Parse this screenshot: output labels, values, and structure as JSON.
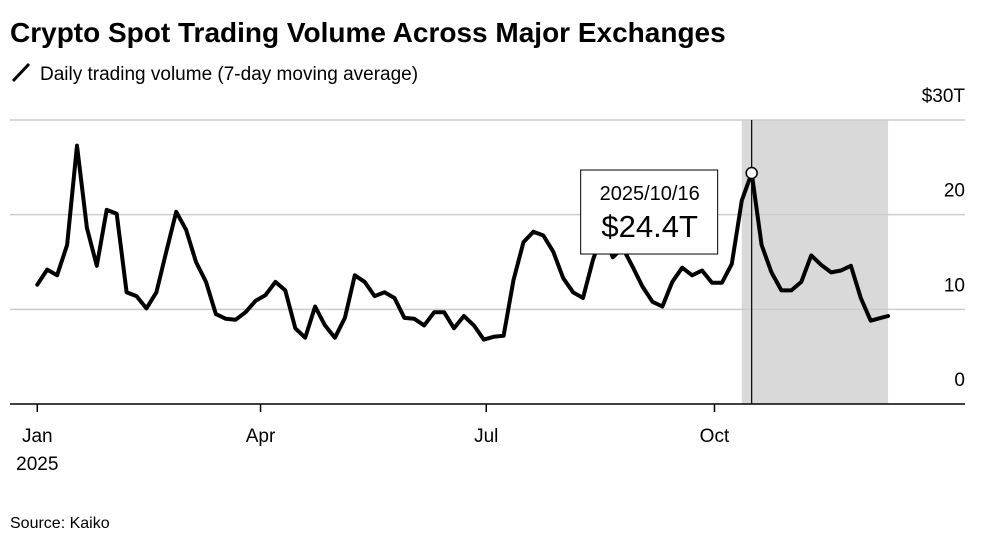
{
  "chart_data": {
    "type": "line",
    "title": "Crypto Spot Trading Volume Across Major Exchanges",
    "source": "Source: Kaiko",
    "x": [
      "2025/01/01",
      "2025/01/05",
      "2025/01/09",
      "2025/01/13",
      "2025/01/17",
      "2025/01/21",
      "2025/01/25",
      "2025/01/29",
      "2025/02/02",
      "2025/02/06",
      "2025/02/10",
      "2025/02/14",
      "2025/02/18",
      "2025/02/22",
      "2025/02/26",
      "2025/03/02",
      "2025/03/06",
      "2025/03/10",
      "2025/03/14",
      "2025/03/18",
      "2025/03/22",
      "2025/03/26",
      "2025/03/30",
      "2025/04/03",
      "2025/04/07",
      "2025/04/11",
      "2025/04/15",
      "2025/04/19",
      "2025/04/23",
      "2025/04/27",
      "2025/05/01",
      "2025/05/05",
      "2025/05/09",
      "2025/05/13",
      "2025/05/17",
      "2025/05/21",
      "2025/05/25",
      "2025/05/29",
      "2025/06/02",
      "2025/06/06",
      "2025/06/10",
      "2025/06/14",
      "2025/06/18",
      "2025/06/22",
      "2025/06/26",
      "2025/06/30",
      "2025/07/04",
      "2025/07/08",
      "2025/07/12",
      "2025/07/16",
      "2025/07/20",
      "2025/07/24",
      "2025/07/28",
      "2025/08/01",
      "2025/08/05",
      "2025/08/09",
      "2025/08/13",
      "2025/08/17",
      "2025/08/21",
      "2025/08/25",
      "2025/08/29",
      "2025/09/02",
      "2025/09/06",
      "2025/09/10",
      "2025/09/14",
      "2025/09/18",
      "2025/09/22",
      "2025/09/26",
      "2025/09/30",
      "2025/10/04",
      "2025/10/08",
      "2025/10/12",
      "2025/10/16",
      "2025/10/20",
      "2025/10/24",
      "2025/10/28",
      "2025/11/01",
      "2025/11/05",
      "2025/11/09",
      "2025/11/13",
      "2025/11/17",
      "2025/11/21",
      "2025/11/25",
      "2025/11/29",
      "2025/12/03",
      "2025/12/07",
      "2025/12/10"
    ],
    "series": [
      {
        "name": "Daily trading volume (7-day moving average)",
        "color": "#000000",
        "values": [
          12.6,
          14.2,
          13.6,
          16.8,
          27.3,
          18.6,
          14.6,
          20.5,
          20.1,
          11.8,
          11.4,
          10.1,
          11.8,
          16.1,
          20.3,
          18.4,
          15.0,
          12.9,
          9.5,
          9.0,
          8.9,
          9.7,
          10.9,
          11.5,
          12.9,
          12.0,
          8.0,
          7.0,
          10.3,
          8.3,
          7.0,
          9.1,
          13.6,
          12.9,
          11.4,
          11.8,
          11.2,
          9.1,
          9.0,
          8.3,
          9.7,
          9.7,
          8.0,
          9.3,
          8.3,
          6.8,
          7.1,
          7.2,
          13.1,
          17.1,
          18.2,
          17.8,
          16.1,
          13.3,
          11.8,
          11.2,
          15.2,
          18.2,
          15.5,
          16.5,
          14.5,
          12.4,
          10.8,
          10.3,
          12.9,
          14.4,
          13.6,
          14.1,
          12.8,
          12.8,
          14.8,
          21.5,
          24.4,
          16.8,
          13.9,
          12.0,
          12.0,
          12.9,
          15.7,
          14.7,
          13.9,
          14.1,
          14.6,
          11.2,
          8.8,
          9.1,
          9.3
        ]
      }
    ],
    "xlim": [
      "2024/12/21",
      "2026/01/10"
    ],
    "xticks": [
      {
        "value": "2025/01/01",
        "label": "Jan",
        "sublabel": "2025"
      },
      {
        "value": "2025/04/01",
        "label": "Apr"
      },
      {
        "value": "2025/07/01",
        "label": "Jul"
      },
      {
        "value": "2025/10/01",
        "label": "Oct"
      }
    ],
    "ylim": [
      0,
      30
    ],
    "yticks": [
      0,
      10,
      20,
      {
        "value": 30,
        "label": "$30T"
      }
    ],
    "grid": true,
    "highlight_range": [
      "2025/10/12",
      "2025/12/10"
    ],
    "highlight_color": "#d9d9d9",
    "annotation": {
      "point": 72,
      "date": "2025/10/16",
      "label": "$24.4T"
    }
  }
}
